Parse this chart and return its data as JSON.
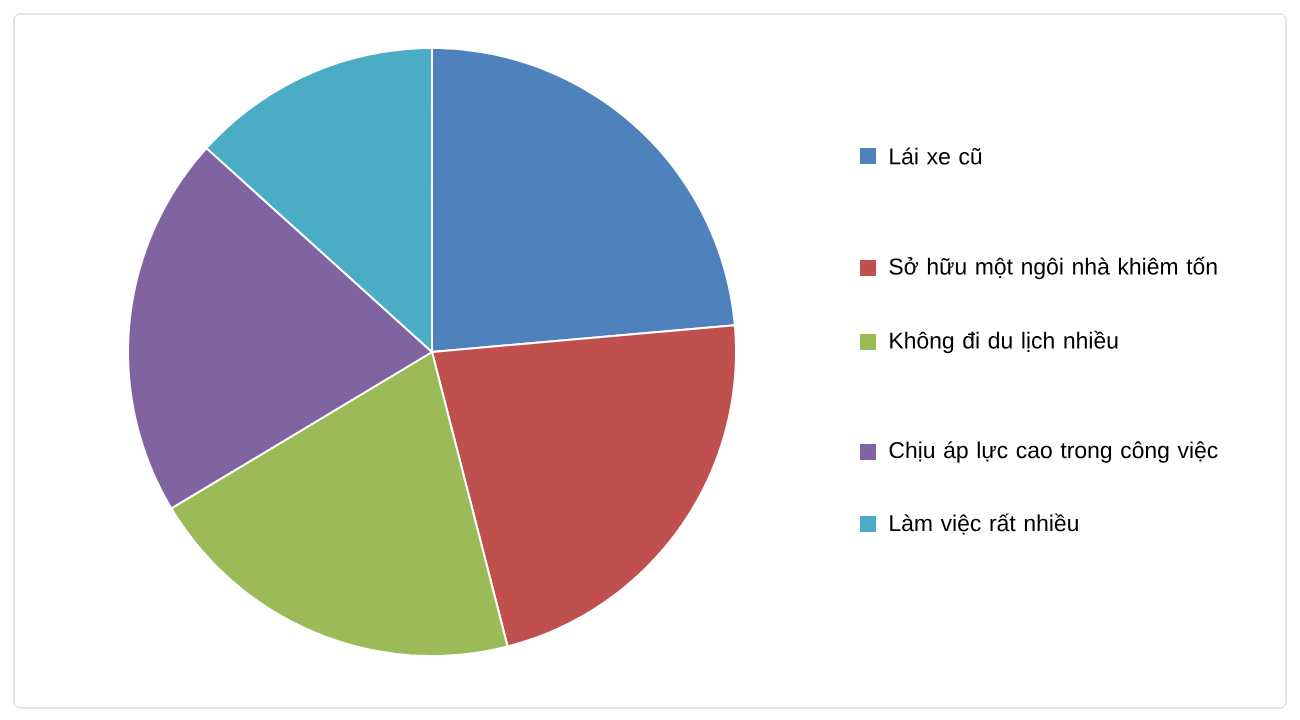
{
  "chart_data": {
    "type": "pie",
    "categories": [
      "Lái xe cũ",
      "Sở hữu một ngôi nhà khiêm tốn",
      "Không đi du lịch nhiều",
      "Chịu áp lực cao trong công việc",
      "Làm việc rất nhiều"
    ],
    "values": [
      23.6,
      22.4,
      20.4,
      20.3,
      13.3
    ],
    "colors": [
      "#4f81bd",
      "#c0504d",
      "#9bbb59",
      "#8064a2",
      "#4bacc6"
    ],
    "legend": "right"
  }
}
